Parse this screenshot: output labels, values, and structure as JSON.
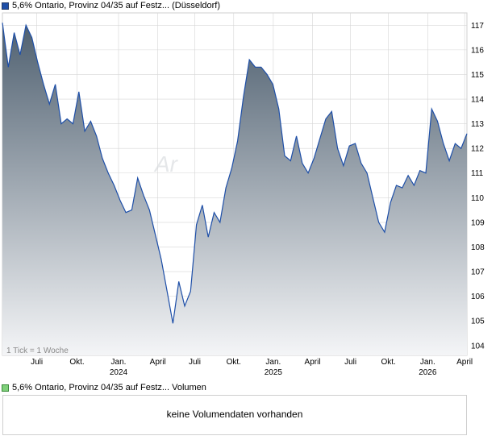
{
  "legend": {
    "main_label": "5,6% Ontario, Provinz 04/35 auf Festz... (Düsseldorf)",
    "volume_label": "5,6% Ontario, Provinz 04/35 auf Festz... Volumen"
  },
  "tick_note": "1 Tick = 1 Woche",
  "watermark": "Ar",
  "volume_message": "keine Volumendaten vorhanden",
  "colors": {
    "line": "#1e4fa8",
    "area_top": "#4f6070",
    "area_bottom": "#f4f5f7",
    "grid": "#d6d6d6"
  },
  "chart_data": {
    "type": "area",
    "ylim": [
      103.6,
      117.5
    ],
    "y_ticks": [
      104,
      105,
      106,
      107,
      108,
      109,
      110,
      111,
      112,
      113,
      114,
      115,
      116,
      117
    ],
    "x_range": [
      0,
      142
    ],
    "x_ticks": [
      {
        "x": 10.5,
        "label": "Juli",
        "year": ""
      },
      {
        "x": 22.8,
        "label": "Okt.",
        "year": ""
      },
      {
        "x": 35.5,
        "label": "Jan.",
        "year": "2024"
      },
      {
        "x": 47.5,
        "label": "April",
        "year": ""
      },
      {
        "x": 58.8,
        "label": "Juli",
        "year": ""
      },
      {
        "x": 70.7,
        "label": "Okt.",
        "year": ""
      },
      {
        "x": 82.8,
        "label": "Jan.",
        "year": "2025"
      },
      {
        "x": 94.8,
        "label": "April",
        "year": ""
      },
      {
        "x": 106.4,
        "label": "Juli",
        "year": ""
      },
      {
        "x": 118.0,
        "label": "Okt.",
        "year": ""
      },
      {
        "x": 130.0,
        "label": "Jan.",
        "year": "2026"
      },
      {
        "x": 141.3,
        "label": "April",
        "year": ""
      }
    ],
    "series": [
      {
        "values": [
          117.1,
          115.3,
          116.7,
          115.8,
          117.0,
          116.5,
          115.5,
          114.6,
          113.8,
          114.6,
          113.0,
          113.2,
          113.0,
          114.3,
          112.7,
          113.1,
          112.5,
          111.6,
          111.0,
          110.5,
          109.9,
          109.4,
          109.5,
          110.8,
          110.1,
          109.5,
          108.5,
          107.5,
          106.2,
          104.9,
          106.6,
          105.6,
          106.2,
          108.9,
          109.7,
          108.4,
          109.4,
          109.0,
          110.4,
          111.2,
          112.3,
          114.1,
          115.6,
          115.3,
          115.3,
          115.0,
          114.6,
          113.6,
          111.7,
          111.5,
          112.5,
          111.4,
          111.0,
          111.6,
          112.4,
          113.2,
          113.5,
          112.0,
          111.3,
          112.1,
          112.2,
          111.4,
          111.0,
          110.0,
          109.0,
          108.6,
          109.8,
          110.5,
          110.4,
          110.9,
          110.5,
          111.1,
          111.0,
          113.6,
          113.1,
          112.2,
          111.5,
          112.2,
          112.0,
          112.6
        ]
      }
    ]
  }
}
